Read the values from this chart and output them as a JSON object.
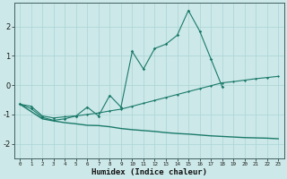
{
  "xlabel": "Humidex (Indice chaleur)",
  "x": [
    0,
    1,
    2,
    3,
    4,
    5,
    6,
    7,
    8,
    9,
    10,
    11,
    12,
    13,
    14,
    15,
    16,
    17,
    18,
    19,
    20,
    21,
    22,
    23
  ],
  "line1_x": [
    0,
    1,
    2,
    3,
    4,
    5,
    6,
    7,
    8,
    9,
    10,
    11,
    12,
    13,
    14,
    15,
    16,
    17,
    18
  ],
  "line1_y": [
    -0.65,
    -0.8,
    -1.1,
    -1.2,
    -1.15,
    -1.05,
    -0.75,
    -1.05,
    -0.35,
    -0.75,
    1.15,
    0.55,
    1.25,
    1.4,
    1.7,
    2.55,
    1.85,
    0.9,
    -0.05
  ],
  "line2_x": [
    0,
    1,
    2,
    3,
    4,
    5,
    6,
    7,
    8,
    9,
    10,
    11,
    12,
    13,
    14,
    15,
    16,
    17,
    18,
    19,
    20,
    21,
    22,
    23
  ],
  "line2_y": [
    -0.65,
    -0.72,
    -1.05,
    -1.12,
    -1.08,
    -1.05,
    -1.0,
    -0.95,
    -0.88,
    -0.82,
    -0.72,
    -0.62,
    -0.52,
    -0.42,
    -0.32,
    -0.22,
    -0.12,
    -0.02,
    0.08,
    0.12,
    0.17,
    0.22,
    0.26,
    0.3
  ],
  "line3_x": [
    0,
    1,
    2,
    3,
    4,
    5,
    6,
    7,
    8,
    9,
    10,
    11,
    12,
    13,
    14,
    15,
    16,
    17,
    18,
    19,
    20,
    21,
    22,
    23
  ],
  "line3_y": [
    -0.65,
    -0.9,
    -1.15,
    -1.22,
    -1.28,
    -1.32,
    -1.37,
    -1.38,
    -1.42,
    -1.48,
    -1.52,
    -1.55,
    -1.58,
    -1.62,
    -1.65,
    -1.67,
    -1.7,
    -1.73,
    -1.75,
    -1.77,
    -1.79,
    -1.8,
    -1.81,
    -1.83
  ],
  "bg_color": "#cce8e8",
  "grid_color": "#aad4d4",
  "line_color": "#1a7a6a",
  "ylim": [
    -2.5,
    2.8
  ],
  "yticks": [
    -2,
    -1,
    0,
    1,
    2
  ],
  "xticks": [
    0,
    1,
    2,
    3,
    4,
    5,
    6,
    7,
    8,
    9,
    10,
    11,
    12,
    13,
    14,
    15,
    16,
    17,
    18,
    19,
    20,
    21,
    22,
    23
  ]
}
